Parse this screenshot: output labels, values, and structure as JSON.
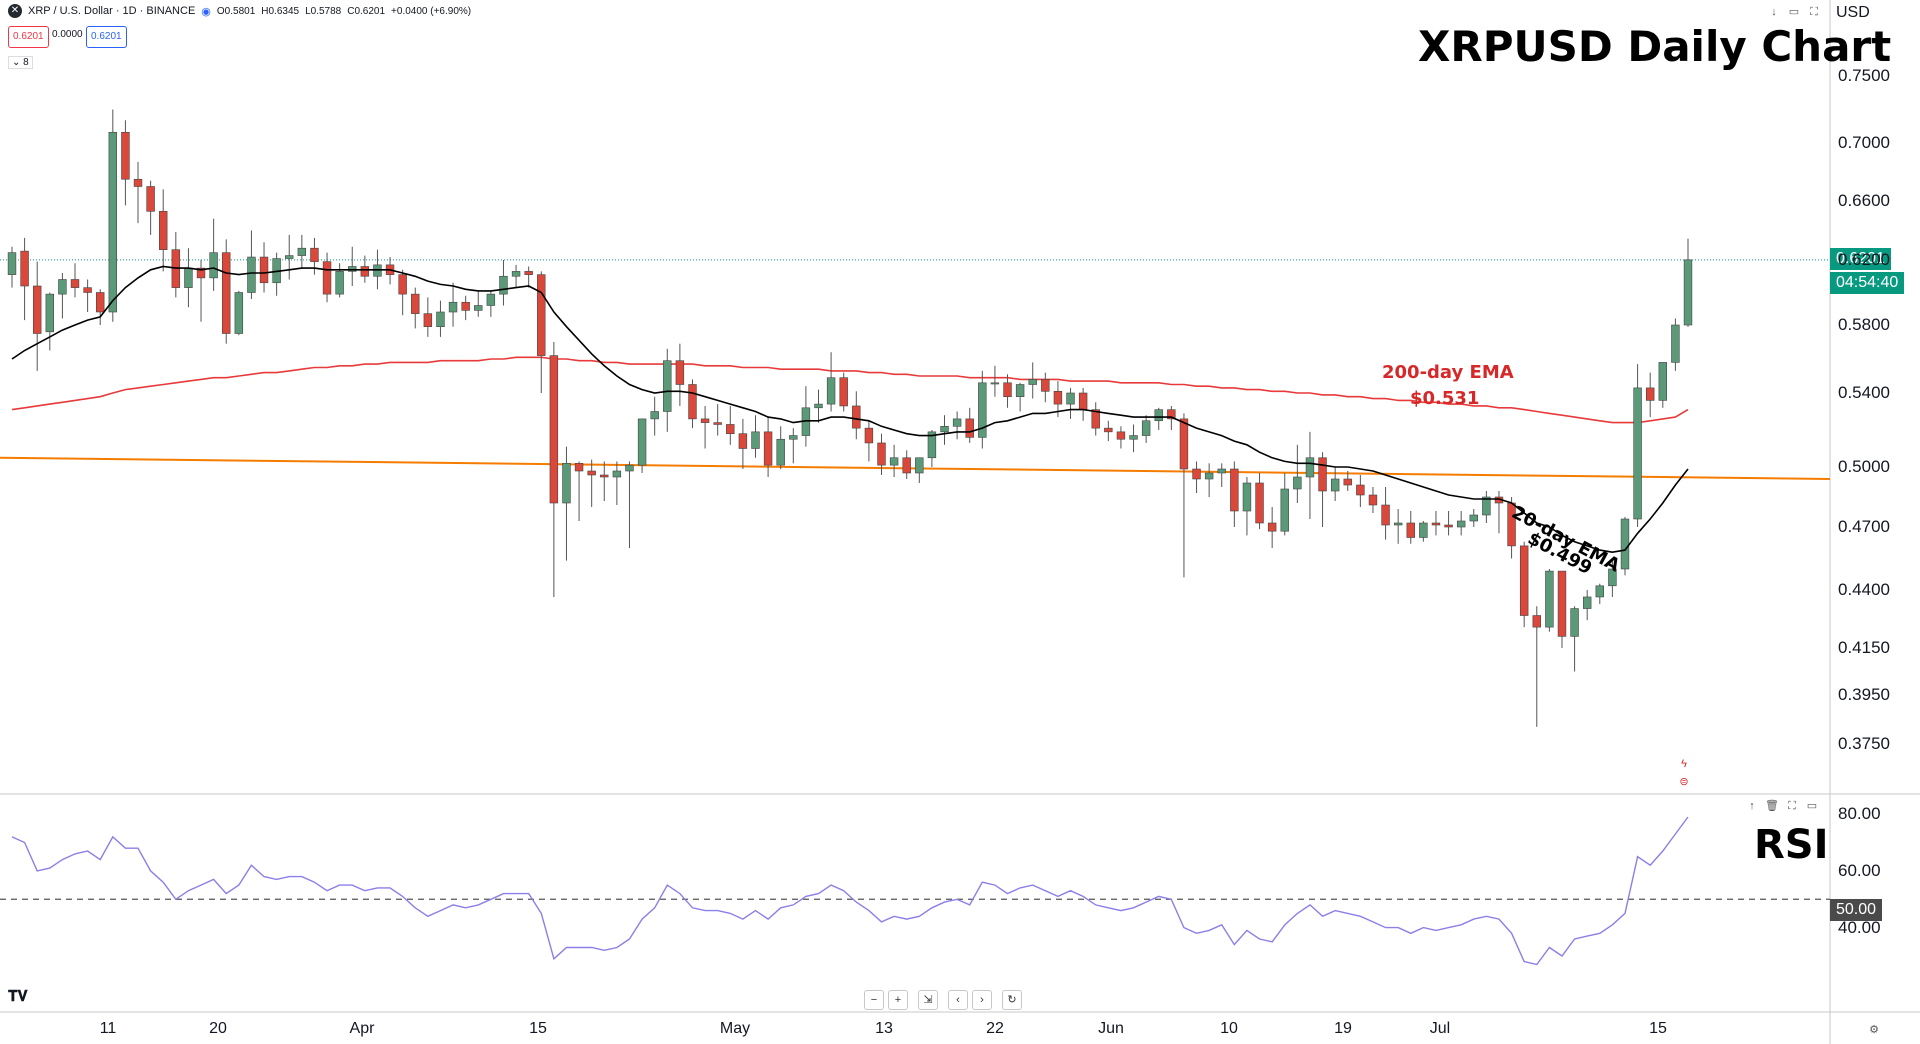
{
  "header": {
    "symbol": "XRP / U.S. Dollar · 1D · BINANCE",
    "open": "O0.5801",
    "high": "H0.6345",
    "low": "L0.5788",
    "close": "C0.6201",
    "change": "+0.0400 (+6.90%)",
    "sell_price": "0.6201",
    "spread": "0.0000",
    "buy_price": "0.6201",
    "collapse": "8"
  },
  "currency": "USD",
  "title": "XRPUSD Daily Chart",
  "rsi_title": "RSI",
  "last_price": "0.6201",
  "countdown": "04:54:40",
  "rsi_level": "50.00",
  "annotations": {
    "ema200_label": "200-day EMA",
    "ema200_value": "$0.531",
    "ema20_label": "20-day EMA",
    "ema20_value": "$0.499"
  },
  "nav": {
    "zoom_out": "−",
    "zoom_in": "+",
    "reset": "⇲",
    "left": "‹",
    "right": "›",
    "refresh": "↻"
  },
  "colors": {
    "up": "#5b9a78",
    "down": "#d9483b",
    "ema20": "#000000",
    "ema200": "#e83a3a",
    "support": "#f57c00",
    "rsi": "#8b7fe8",
    "accent": "#089981"
  },
  "chart_data": [
    {
      "type": "candlestick",
      "ylim": [
        0.36,
        0.78
      ],
      "y_ticks": [
        "0.7500",
        "0.7000",
        "0.6600",
        "0.6200",
        "0.5800",
        "0.5400",
        "0.5000",
        "0.4700",
        "0.4400",
        "0.4150",
        "0.3950",
        "0.3750"
      ],
      "x_ticks": [
        "11",
        "20",
        "Apr",
        "15",
        "May",
        "13",
        "22",
        "Jun",
        "10",
        "19",
        "Jul",
        "15"
      ],
      "candles": [
        [
          0.611,
          0.629,
          0.603,
          0.625
        ],
        [
          0.626,
          0.635,
          0.583,
          0.604
        ],
        [
          0.604,
          0.619,
          0.553,
          0.575
        ],
        [
          0.576,
          0.6,
          0.565,
          0.599
        ],
        [
          0.599,
          0.612,
          0.584,
          0.608
        ],
        [
          0.608,
          0.618,
          0.597,
          0.603
        ],
        [
          0.603,
          0.608,
          0.588,
          0.6
        ],
        [
          0.6,
          0.602,
          0.58,
          0.588
        ],
        [
          0.588,
          0.725,
          0.582,
          0.708
        ],
        [
          0.708,
          0.717,
          0.657,
          0.675
        ],
        [
          0.675,
          0.687,
          0.645,
          0.67
        ],
        [
          0.67,
          0.674,
          0.637,
          0.653
        ],
        [
          0.653,
          0.668,
          0.613,
          0.627
        ],
        [
          0.627,
          0.639,
          0.597,
          0.603
        ],
        [
          0.603,
          0.628,
          0.591,
          0.615
        ],
        [
          0.615,
          0.62,
          0.582,
          0.609
        ],
        [
          0.609,
          0.648,
          0.601,
          0.625
        ],
        [
          0.625,
          0.634,
          0.569,
          0.575
        ],
        [
          0.575,
          0.601,
          0.574,
          0.6
        ],
        [
          0.6,
          0.64,
          0.596,
          0.622
        ],
        [
          0.622,
          0.632,
          0.6,
          0.606
        ],
        [
          0.606,
          0.625,
          0.598,
          0.621
        ],
        [
          0.621,
          0.637,
          0.608,
          0.623
        ],
        [
          0.623,
          0.637,
          0.615,
          0.628
        ],
        [
          0.628,
          0.635,
          0.611,
          0.619
        ],
        [
          0.619,
          0.625,
          0.594,
          0.599
        ],
        [
          0.599,
          0.618,
          0.597,
          0.613
        ],
        [
          0.613,
          0.629,
          0.604,
          0.616
        ],
        [
          0.616,
          0.623,
          0.606,
          0.61
        ],
        [
          0.61,
          0.627,
          0.602,
          0.617
        ],
        [
          0.617,
          0.622,
          0.605,
          0.611
        ],
        [
          0.611,
          0.614,
          0.586,
          0.599
        ],
        [
          0.599,
          0.603,
          0.578,
          0.587
        ],
        [
          0.587,
          0.597,
          0.573,
          0.579
        ],
        [
          0.579,
          0.595,
          0.573,
          0.588
        ],
        [
          0.588,
          0.606,
          0.579,
          0.594
        ],
        [
          0.594,
          0.598,
          0.583,
          0.589
        ],
        [
          0.589,
          0.601,
          0.585,
          0.592
        ],
        [
          0.592,
          0.601,
          0.585,
          0.599
        ],
        [
          0.599,
          0.62,
          0.592,
          0.61
        ],
        [
          0.61,
          0.617,
          0.603,
          0.613
        ],
        [
          0.613,
          0.616,
          0.603,
          0.611
        ],
        [
          0.611,
          0.613,
          0.54,
          0.562
        ],
        [
          0.562,
          0.57,
          0.437,
          0.482
        ],
        [
          0.482,
          0.511,
          0.454,
          0.502
        ],
        [
          0.502,
          0.503,
          0.473,
          0.498
        ],
        [
          0.498,
          0.504,
          0.48,
          0.496
        ],
        [
          0.496,
          0.503,
          0.483,
          0.495
        ],
        [
          0.495,
          0.503,
          0.481,
          0.498
        ],
        [
          0.498,
          0.503,
          0.46,
          0.501
        ],
        [
          0.501,
          0.526,
          0.497,
          0.526
        ],
        [
          0.526,
          0.538,
          0.517,
          0.53
        ],
        [
          0.53,
          0.566,
          0.519,
          0.559
        ],
        [
          0.559,
          0.569,
          0.533,
          0.545
        ],
        [
          0.545,
          0.548,
          0.521,
          0.526
        ],
        [
          0.526,
          0.533,
          0.51,
          0.524
        ],
        [
          0.524,
          0.534,
          0.517,
          0.523
        ],
        [
          0.523,
          0.533,
          0.512,
          0.518
        ],
        [
          0.518,
          0.526,
          0.499,
          0.51
        ],
        [
          0.51,
          0.528,
          0.505,
          0.519
        ],
        [
          0.519,
          0.527,
          0.495,
          0.501
        ],
        [
          0.501,
          0.522,
          0.499,
          0.515
        ],
        [
          0.515,
          0.521,
          0.502,
          0.517
        ],
        [
          0.517,
          0.544,
          0.511,
          0.532
        ],
        [
          0.532,
          0.542,
          0.524,
          0.534
        ],
        [
          0.534,
          0.564,
          0.53,
          0.549
        ],
        [
          0.549,
          0.552,
          0.53,
          0.533
        ],
        [
          0.533,
          0.541,
          0.515,
          0.521
        ],
        [
          0.521,
          0.525,
          0.503,
          0.513
        ],
        [
          0.513,
          0.518,
          0.496,
          0.501
        ],
        [
          0.501,
          0.512,
          0.495,
          0.505
        ],
        [
          0.505,
          0.509,
          0.494,
          0.497
        ],
        [
          0.497,
          0.505,
          0.492,
          0.505
        ],
        [
          0.505,
          0.52,
          0.5,
          0.519
        ],
        [
          0.519,
          0.528,
          0.512,
          0.522
        ],
        [
          0.522,
          0.53,
          0.515,
          0.526
        ],
        [
          0.526,
          0.532,
          0.513,
          0.516
        ],
        [
          0.516,
          0.553,
          0.51,
          0.546
        ],
        [
          0.546,
          0.556,
          0.538,
          0.546
        ],
        [
          0.546,
          0.551,
          0.532,
          0.538
        ],
        [
          0.538,
          0.546,
          0.53,
          0.545
        ],
        [
          0.545,
          0.558,
          0.537,
          0.548
        ],
        [
          0.548,
          0.552,
          0.535,
          0.541
        ],
        [
          0.541,
          0.547,
          0.527,
          0.534
        ],
        [
          0.534,
          0.543,
          0.526,
          0.54
        ],
        [
          0.54,
          0.543,
          0.525,
          0.531
        ],
        [
          0.531,
          0.535,
          0.517,
          0.521
        ],
        [
          0.521,
          0.525,
          0.514,
          0.519
        ],
        [
          0.519,
          0.522,
          0.51,
          0.515
        ],
        [
          0.515,
          0.523,
          0.508,
          0.517
        ],
        [
          0.517,
          0.528,
          0.513,
          0.525
        ],
        [
          0.525,
          0.532,
          0.52,
          0.531
        ],
        [
          0.531,
          0.533,
          0.52,
          0.526
        ],
        [
          0.526,
          0.529,
          0.446,
          0.499
        ],
        [
          0.499,
          0.503,
          0.487,
          0.494
        ],
        [
          0.494,
          0.502,
          0.485,
          0.497
        ],
        [
          0.497,
          0.502,
          0.49,
          0.499
        ],
        [
          0.499,
          0.503,
          0.47,
          0.478
        ],
        [
          0.478,
          0.495,
          0.466,
          0.492
        ],
        [
          0.492,
          0.497,
          0.469,
          0.472
        ],
        [
          0.472,
          0.48,
          0.46,
          0.468
        ],
        [
          0.468,
          0.497,
          0.466,
          0.489
        ],
        [
          0.489,
          0.512,
          0.482,
          0.495
        ],
        [
          0.495,
          0.519,
          0.474,
          0.505
        ],
        [
          0.505,
          0.508,
          0.47,
          0.488
        ],
        [
          0.488,
          0.5,
          0.483,
          0.494
        ],
        [
          0.494,
          0.498,
          0.488,
          0.491
        ],
        [
          0.491,
          0.496,
          0.48,
          0.486
        ],
        [
          0.486,
          0.49,
          0.477,
          0.481
        ],
        [
          0.481,
          0.49,
          0.464,
          0.471
        ],
        [
          0.471,
          0.479,
          0.462,
          0.472
        ],
        [
          0.472,
          0.478,
          0.462,
          0.465
        ],
        [
          0.465,
          0.473,
          0.463,
          0.472
        ],
        [
          0.472,
          0.478,
          0.466,
          0.471
        ],
        [
          0.471,
          0.478,
          0.466,
          0.47
        ],
        [
          0.47,
          0.478,
          0.466,
          0.473
        ],
        [
          0.473,
          0.479,
          0.47,
          0.476
        ],
        [
          0.476,
          0.488,
          0.472,
          0.485
        ],
        [
          0.485,
          0.488,
          0.467,
          0.482
        ],
        [
          0.482,
          0.485,
          0.455,
          0.461
        ],
        [
          0.461,
          0.463,
          0.424,
          0.429
        ],
        [
          0.429,
          0.433,
          0.382,
          0.424
        ],
        [
          0.424,
          0.45,
          0.422,
          0.449
        ],
        [
          0.449,
          0.449,
          0.415,
          0.42
        ],
        [
          0.42,
          0.433,
          0.405,
          0.432
        ],
        [
          0.432,
          0.44,
          0.427,
          0.437
        ],
        [
          0.437,
          0.443,
          0.434,
          0.442
        ],
        [
          0.442,
          0.455,
          0.437,
          0.45
        ],
        [
          0.45,
          0.475,
          0.447,
          0.474
        ],
        [
          0.474,
          0.557,
          0.47,
          0.543
        ],
        [
          0.543,
          0.552,
          0.527,
          0.536
        ],
        [
          0.536,
          0.557,
          0.532,
          0.558
        ],
        [
          0.558,
          0.584,
          0.553,
          0.58
        ],
        [
          0.58,
          0.6345,
          0.5788,
          0.6201
        ]
      ],
      "ema20": [
        0.56,
        0.565,
        0.569,
        0.573,
        0.577,
        0.58,
        0.583,
        0.585,
        0.595,
        0.603,
        0.609,
        0.614,
        0.616,
        0.615,
        0.615,
        0.614,
        0.615,
        0.612,
        0.611,
        0.612,
        0.612,
        0.613,
        0.614,
        0.615,
        0.615,
        0.614,
        0.614,
        0.614,
        0.614,
        0.614,
        0.614,
        0.612,
        0.61,
        0.607,
        0.605,
        0.604,
        0.602,
        0.601,
        0.601,
        0.602,
        0.603,
        0.604,
        0.6,
        0.588,
        0.579,
        0.571,
        0.563,
        0.556,
        0.55,
        0.545,
        0.542,
        0.54,
        0.541,
        0.541,
        0.54,
        0.538,
        0.536,
        0.534,
        0.532,
        0.53,
        0.527,
        0.526,
        0.524,
        0.525,
        0.525,
        0.527,
        0.527,
        0.526,
        0.525,
        0.522,
        0.52,
        0.518,
        0.517,
        0.517,
        0.518,
        0.519,
        0.519,
        0.521,
        0.524,
        0.525,
        0.527,
        0.529,
        0.529,
        0.53,
        0.531,
        0.531,
        0.53,
        0.529,
        0.528,
        0.527,
        0.527,
        0.527,
        0.527,
        0.524,
        0.521,
        0.519,
        0.517,
        0.514,
        0.512,
        0.508,
        0.505,
        0.503,
        0.502,
        0.502,
        0.501,
        0.5,
        0.5,
        0.499,
        0.498,
        0.496,
        0.494,
        0.492,
        0.49,
        0.488,
        0.486,
        0.485,
        0.484,
        0.484,
        0.484,
        0.482,
        0.477,
        0.472,
        0.47,
        0.466,
        0.463,
        0.461,
        0.459,
        0.458,
        0.459,
        0.467,
        0.474,
        0.482,
        0.491,
        0.499
      ],
      "ema200": [
        0.531,
        0.532,
        0.533,
        0.534,
        0.535,
        0.536,
        0.537,
        0.538,
        0.54,
        0.542,
        0.543,
        0.544,
        0.545,
        0.546,
        0.547,
        0.548,
        0.549,
        0.549,
        0.55,
        0.551,
        0.552,
        0.552,
        0.553,
        0.554,
        0.555,
        0.555,
        0.556,
        0.556,
        0.557,
        0.557,
        0.558,
        0.558,
        0.558,
        0.558,
        0.559,
        0.559,
        0.559,
        0.559,
        0.56,
        0.56,
        0.561,
        0.561,
        0.561,
        0.56,
        0.56,
        0.559,
        0.559,
        0.558,
        0.558,
        0.557,
        0.557,
        0.557,
        0.557,
        0.557,
        0.557,
        0.556,
        0.556,
        0.556,
        0.555,
        0.555,
        0.555,
        0.554,
        0.554,
        0.554,
        0.554,
        0.553,
        0.553,
        0.553,
        0.552,
        0.552,
        0.551,
        0.551,
        0.55,
        0.55,
        0.55,
        0.55,
        0.549,
        0.549,
        0.549,
        0.549,
        0.548,
        0.548,
        0.548,
        0.548,
        0.547,
        0.547,
        0.547,
        0.547,
        0.546,
        0.546,
        0.546,
        0.546,
        0.545,
        0.545,
        0.544,
        0.544,
        0.543,
        0.543,
        0.542,
        0.542,
        0.541,
        0.541,
        0.54,
        0.54,
        0.539,
        0.539,
        0.538,
        0.538,
        0.537,
        0.537,
        0.536,
        0.536,
        0.535,
        0.535,
        0.534,
        0.534,
        0.533,
        0.533,
        0.532,
        0.532,
        0.531,
        0.53,
        0.529,
        0.528,
        0.527,
        0.526,
        0.525,
        0.524,
        0.524,
        0.524,
        0.525,
        0.526,
        0.527,
        0.531
      ],
      "support": [
        0.505,
        0.494
      ]
    },
    {
      "type": "line",
      "ylim": [
        18,
        85
      ],
      "y_ticks": [
        "80.00",
        "60.00",
        "40.00"
      ],
      "level": 50,
      "rsi": [
        72,
        70,
        60,
        61,
        64,
        66,
        67,
        64,
        72,
        68,
        68,
        60,
        56,
        50,
        53,
        55,
        57,
        52,
        55,
        62,
        58,
        57,
        58,
        58,
        56,
        53,
        55,
        55,
        53,
        54,
        54,
        51,
        47,
        44,
        46,
        48,
        47,
        48,
        50,
        52,
        52,
        52,
        45,
        29,
        33,
        33,
        33,
        32,
        33,
        36,
        43,
        47,
        55,
        52,
        47,
        46,
        46,
        45,
        43,
        46,
        43,
        47,
        48,
        51,
        52,
        55,
        53,
        49,
        46,
        42,
        44,
        43,
        44,
        47,
        49,
        50,
        48,
        56,
        55,
        52,
        54,
        55,
        53,
        51,
        53,
        51,
        48,
        47,
        46,
        47,
        49,
        51,
        50,
        40,
        38,
        39,
        41,
        34,
        39,
        36,
        35,
        41,
        45,
        48,
        44,
        46,
        45,
        44,
        42,
        40,
        40,
        38,
        40,
        39,
        40,
        41,
        43,
        44,
        43,
        38,
        28,
        27,
        33,
        30,
        36,
        37,
        38,
        41,
        45,
        65,
        62,
        67,
        73,
        79
      ]
    }
  ]
}
